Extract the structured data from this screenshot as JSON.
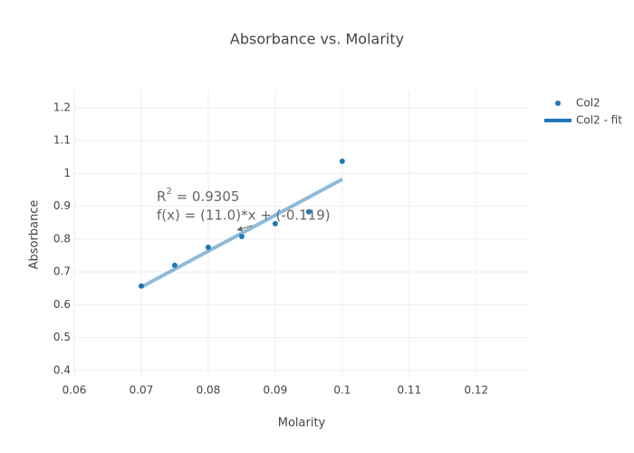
{
  "chart_data": {
    "type": "scatter",
    "title": "Absorbance vs. Molarity",
    "x_label": "Molarity",
    "y_label": "Absorbance",
    "series": [
      {
        "name": "Col2",
        "color": "#1f77b4",
        "mode": "markers",
        "x": [
          0.07,
          0.075,
          0.08,
          0.085,
          0.09,
          0.095,
          0.1
        ],
        "values": [
          0.657,
          0.72,
          0.775,
          0.808,
          0.847,
          0.883,
          1.037
        ]
      },
      {
        "name": "Col2 - fit",
        "color": "#1f77b4",
        "mode": "lines",
        "x": [
          0.07,
          0.1
        ],
        "values": [
          0.654,
          0.982
        ]
      }
    ],
    "annotation": {
      "r_symbol": "R",
      "r_exponent": "2",
      "r_value": " = 0.9305",
      "formula": "f(x) = (11.0)*x + (-0.119)"
    },
    "xlim": [
      0.06,
      0.128
    ],
    "ylim": [
      0.375,
      1.252
    ],
    "xticks": [
      0.06,
      0.07,
      0.08,
      0.09,
      0.1,
      0.11,
      0.12
    ],
    "yticks": [
      0.4,
      0.5,
      0.6,
      0.7,
      0.8,
      0.9,
      1,
      1.1,
      1.2
    ],
    "grid": true
  }
}
